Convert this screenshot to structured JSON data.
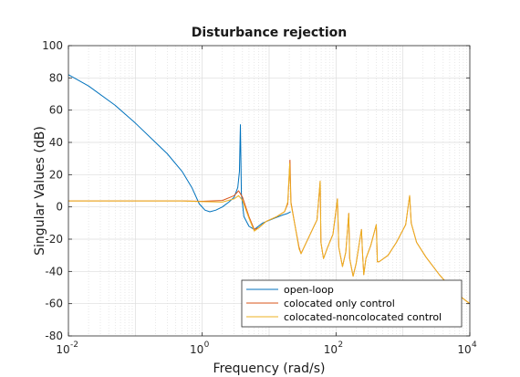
{
  "chart_data": {
    "type": "line",
    "title": "Disturbance rejection",
    "xlabel": "Frequency (rad/s)",
    "ylabel": "Singular Values (dB)",
    "xscale": "log",
    "xlim": [
      0.01,
      10000
    ],
    "ylim": [
      -80,
      100
    ],
    "grid": true,
    "legend_location": "bottom-right",
    "x_ticks": [
      {
        "value": 0.01,
        "base": "10",
        "exp": "-2"
      },
      {
        "value": 1,
        "base": "10",
        "exp": "0"
      },
      {
        "value": 100,
        "base": "10",
        "exp": "2"
      },
      {
        "value": 10000,
        "base": "10",
        "exp": "4"
      }
    ],
    "y_ticks": [
      100,
      80,
      60,
      40,
      20,
      0,
      -20,
      -40,
      -60,
      -80
    ],
    "series": [
      {
        "name": "open-loop",
        "color": "#0072bd",
        "points": [
          [
            0.01,
            82
          ],
          [
            0.02,
            75
          ],
          [
            0.05,
            63
          ],
          [
            0.1,
            52
          ],
          [
            0.2,
            40
          ],
          [
            0.3,
            33
          ],
          [
            0.5,
            22
          ],
          [
            0.7,
            12
          ],
          [
            0.9,
            2
          ],
          [
            1.1,
            -2
          ],
          [
            1.3,
            -3
          ],
          [
            1.6,
            -2
          ],
          [
            2.0,
            0
          ],
          [
            2.5,
            3
          ],
          [
            3.0,
            6
          ],
          [
            3.4,
            12
          ],
          [
            3.6,
            22
          ],
          [
            3.72,
            51
          ],
          [
            3.85,
            8
          ],
          [
            4.2,
            -6
          ],
          [
            5.0,
            -12
          ],
          [
            6.0,
            -14
          ],
          [
            8,
            -10
          ],
          [
            12,
            -7
          ],
          [
            16,
            -5
          ],
          [
            19,
            -4
          ],
          [
            21,
            -3
          ]
        ]
      },
      {
        "name": "colocated only control",
        "color": "#d95319",
        "points": [
          [
            0.01,
            3.7
          ],
          [
            0.1,
            3.7
          ],
          [
            0.5,
            3.7
          ],
          [
            1.0,
            3.5
          ],
          [
            2.0,
            4
          ],
          [
            3.0,
            7
          ],
          [
            3.5,
            10
          ],
          [
            4.0,
            6
          ],
          [
            5.0,
            -6
          ],
          [
            6.0,
            -14
          ],
          [
            7,
            -13
          ],
          [
            9,
            -9
          ],
          [
            13,
            -6
          ],
          [
            17,
            -3
          ],
          [
            19,
            2
          ],
          [
            20.5,
            29
          ],
          [
            21.2,
            3
          ],
          [
            24,
            -10
          ],
          [
            28,
            -25
          ],
          [
            30,
            -29
          ],
          [
            40,
            -18
          ],
          [
            52,
            -8
          ],
          [
            58,
            16
          ],
          [
            59.5,
            -22
          ],
          [
            65,
            -32
          ],
          [
            75,
            -25
          ],
          [
            90,
            -17
          ],
          [
            105,
            5
          ],
          [
            110,
            -25
          ],
          [
            125,
            -37
          ],
          [
            140,
            -28
          ],
          [
            155,
            -4
          ],
          [
            160,
            -32
          ],
          [
            180,
            -43
          ],
          [
            200,
            -35
          ],
          [
            240,
            -14
          ],
          [
            250,
            -30
          ],
          [
            260,
            -42
          ],
          [
            280,
            -32
          ],
          [
            330,
            -24
          ],
          [
            400,
            -11
          ],
          [
            415,
            -34
          ],
          [
            440,
            -34
          ],
          [
            600,
            -30
          ],
          [
            800,
            -22
          ],
          [
            1100,
            -11
          ],
          [
            1260,
            7
          ],
          [
            1330,
            -10
          ],
          [
            1600,
            -22
          ],
          [
            2200,
            -31
          ],
          [
            3500,
            -42
          ],
          [
            6000,
            -53
          ],
          [
            10000,
            -60
          ]
        ]
      },
      {
        "name": "colocated-noncolocated control",
        "color": "#edb120",
        "points": [
          [
            0.01,
            3.7
          ],
          [
            0.1,
            3.7
          ],
          [
            0.5,
            3.7
          ],
          [
            1.0,
            3.3
          ],
          [
            2.0,
            3
          ],
          [
            3.0,
            5
          ],
          [
            3.5,
            7
          ],
          [
            4.0,
            4
          ],
          [
            5.0,
            -7
          ],
          [
            6.0,
            -15
          ],
          [
            7,
            -13
          ],
          [
            9,
            -9
          ],
          [
            13,
            -6
          ],
          [
            17,
            -3
          ],
          [
            19,
            3
          ],
          [
            20.3,
            27
          ],
          [
            21.2,
            2
          ],
          [
            24,
            -10
          ],
          [
            28,
            -26
          ],
          [
            30,
            -29
          ],
          [
            40,
            -18
          ],
          [
            52,
            -8
          ],
          [
            58,
            16
          ],
          [
            59.5,
            -22
          ],
          [
            65,
            -32
          ],
          [
            75,
            -25
          ],
          [
            90,
            -17
          ],
          [
            105,
            5
          ],
          [
            110,
            -25
          ],
          [
            125,
            -37
          ],
          [
            140,
            -28
          ],
          [
            155,
            -4
          ],
          [
            160,
            -32
          ],
          [
            180,
            -43
          ],
          [
            200,
            -35
          ],
          [
            240,
            -14
          ],
          [
            250,
            -30
          ],
          [
            260,
            -42
          ],
          [
            280,
            -32
          ],
          [
            330,
            -24
          ],
          [
            400,
            -11
          ],
          [
            415,
            -34
          ],
          [
            440,
            -34
          ],
          [
            600,
            -30
          ],
          [
            800,
            -22
          ],
          [
            1100,
            -11
          ],
          [
            1260,
            7
          ],
          [
            1330,
            -10
          ],
          [
            1600,
            -22
          ],
          [
            2200,
            -31
          ],
          [
            3500,
            -42
          ],
          [
            6000,
            -53
          ],
          [
            10000,
            -60
          ]
        ]
      }
    ]
  }
}
